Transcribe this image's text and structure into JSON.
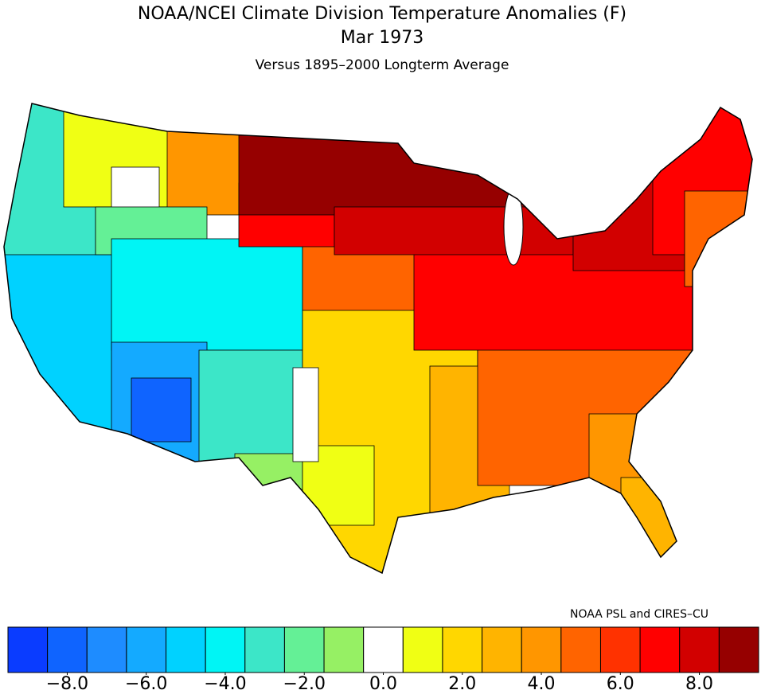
{
  "chart_data": {
    "type": "colorbar",
    "title": "NOAA/NCEI Climate Division Temperature Anomalies (F)",
    "subtitle": "Mar 1973",
    "note": "Versus 1895–2000 Longterm Average",
    "credit": "NOAA PSL and CIRES–CU",
    "xlim": [
      -9.5,
      9.5
    ],
    "xticks": [
      {
        "value": -8,
        "label": "−8.0"
      },
      {
        "value": -6,
        "label": "−6.0"
      },
      {
        "value": -4,
        "label": "−4.0"
      },
      {
        "value": -2,
        "label": "−2.0"
      },
      {
        "value": 0,
        "label": "0.0"
      },
      {
        "value": 2,
        "label": "2.0"
      },
      {
        "value": 4,
        "label": "4.0"
      },
      {
        "value": 6,
        "label": "6.0"
      },
      {
        "value": 8,
        "label": "8.0"
      }
    ],
    "colors": [
      "#0a3cff",
      "#0f64ff",
      "#1e8cff",
      "#14aaff",
      "#00d2ff",
      "#00f5f5",
      "#3ce6c8",
      "#64f096",
      "#96f064",
      "#ffffff",
      "#f0ff14",
      "#ffd700",
      "#ffb400",
      "#ff9600",
      "#ff6400",
      "#ff3200",
      "#ff0000",
      "#d20000",
      "#960000"
    ]
  }
}
